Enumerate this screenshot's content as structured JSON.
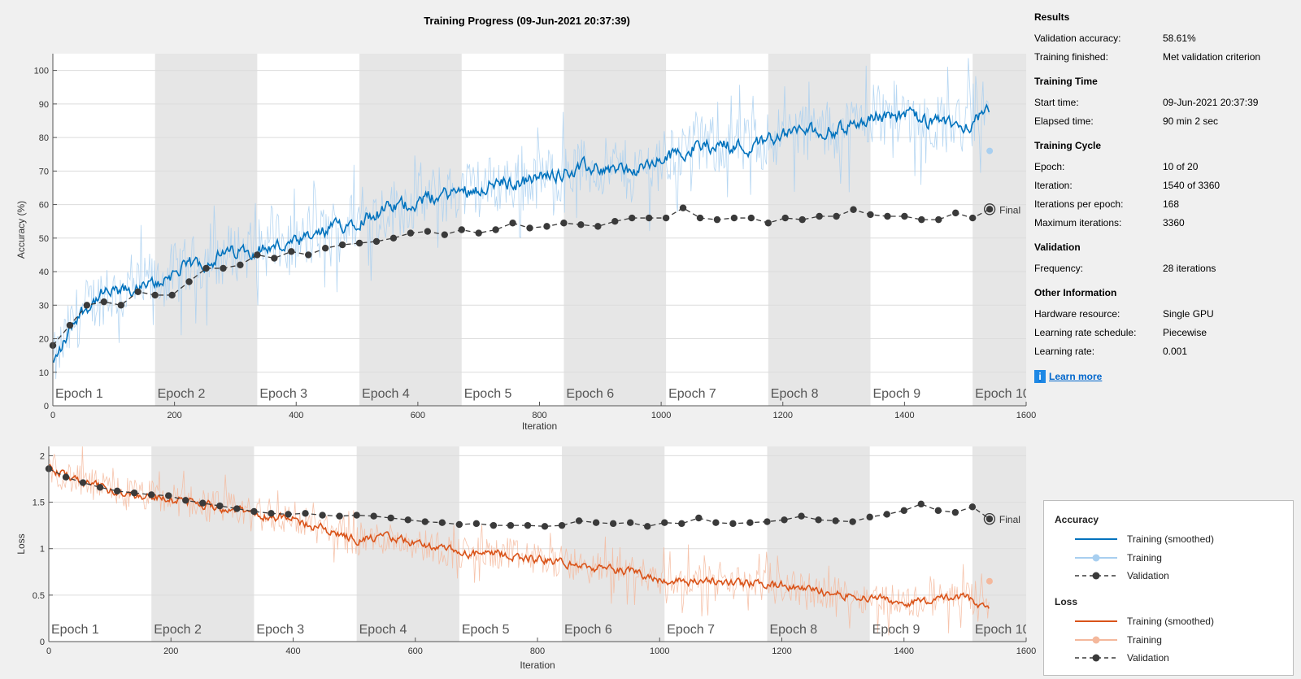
{
  "window": {
    "title": "Training Progress (09-Jun-2021 20:37:39)"
  },
  "colors": {
    "accuracy_smoothed": "#0072bd",
    "accuracy_raw": "#a8cff0",
    "loss_smoothed": "#d95319",
    "loss_raw": "#f4b89c",
    "validation": "#3a3a3a",
    "epoch_shade": "#e6e6e6",
    "plot_bg": "#ffffff",
    "grid": "#dcdcdc"
  },
  "chart_data": [
    {
      "type": "line",
      "title": "",
      "xlabel": "Iteration",
      "ylabel": "Accuracy (%)",
      "xlim": [
        0,
        1600
      ],
      "ylim": [
        0,
        105
      ],
      "xticks": [
        0,
        200,
        400,
        600,
        800,
        1000,
        1200,
        1400,
        1600
      ],
      "yticks": [
        0,
        10,
        20,
        30,
        40,
        50,
        60,
        70,
        80,
        90,
        100
      ],
      "grid": true,
      "epochs": [
        "Epoch 1",
        "Epoch 2",
        "Epoch 3",
        "Epoch 4",
        "Epoch 5",
        "Epoch 6",
        "Epoch 7",
        "Epoch 8",
        "Epoch 9",
        "Epoch 10"
      ],
      "iterations_per_epoch": 168,
      "final_label": "Final",
      "smoothed_anchors": {
        "x": [
          0,
          40,
          80,
          120,
          168,
          200,
          250,
          300,
          336,
          400,
          450,
          504,
          560,
          620,
          672,
          720,
          780,
          840,
          900,
          960,
          1008,
          1050,
          1100,
          1150,
          1176,
          1230,
          1290,
          1344,
          1400,
          1450,
          1500,
          1540
        ],
        "y": [
          12,
          27,
          33,
          34,
          36,
          40,
          43,
          46,
          47,
          48,
          52,
          56,
          59,
          62,
          64,
          66,
          67,
          70,
          71,
          70,
          74,
          77,
          78,
          77,
          80,
          82,
          82,
          86,
          87,
          84,
          84,
          87
        ]
      },
      "series": [
        {
          "name": "Validation",
          "x": [
            0,
            28,
            56,
            84,
            112,
            140,
            168,
            196,
            224,
            252,
            280,
            308,
            336,
            364,
            392,
            420,
            448,
            476,
            504,
            532,
            560,
            588,
            616,
            644,
            672,
            700,
            728,
            756,
            784,
            812,
            840,
            868,
            896,
            924,
            952,
            980,
            1008,
            1036,
            1064,
            1092,
            1120,
            1148,
            1176,
            1204,
            1232,
            1260,
            1288,
            1316,
            1344,
            1372,
            1400,
            1428,
            1456,
            1484,
            1512,
            1540
          ],
          "y": [
            18,
            24,
            30,
            31,
            30,
            34,
            33,
            33,
            37,
            41,
            41,
            42,
            45,
            44,
            46,
            45,
            47,
            48,
            48.5,
            49,
            50,
            51.5,
            52,
            51,
            52.5,
            51.5,
            52.5,
            54.5,
            53,
            53.5,
            54.5,
            54,
            53.5,
            55,
            56,
            56,
            56,
            59,
            56,
            55.5,
            56,
            56,
            54.5,
            56,
            55.5,
            56.5,
            56.5,
            58.5,
            57,
            56.5,
            56.5,
            55.5,
            55.5,
            57.5,
            56,
            58.61
          ]
        }
      ]
    },
    {
      "type": "line",
      "title": "",
      "xlabel": "Iteration",
      "ylabel": "Loss",
      "xlim": [
        0,
        1600
      ],
      "ylim": [
        0,
        2.1
      ],
      "xticks": [
        0,
        200,
        400,
        600,
        800,
        1000,
        1200,
        1400,
        1600
      ],
      "yticks": [
        0,
        0.5,
        1,
        1.5,
        2
      ],
      "ytick_labels": [
        "0",
        "0.5",
        "1",
        "1.5",
        "2"
      ],
      "grid": true,
      "epochs": [
        "Epoch 1",
        "Epoch 2",
        "Epoch 3",
        "Epoch 4",
        "Epoch 5",
        "Epoch 6",
        "Epoch 7",
        "Epoch 8",
        "Epoch 9",
        "Epoch 10"
      ],
      "iterations_per_epoch": 168,
      "final_label": "Final",
      "smoothed_anchors": {
        "x": [
          0,
          50,
          100,
          168,
          250,
          336,
          400,
          504,
          560,
          620,
          672,
          750,
          840,
          900,
          960,
          1008,
          1100,
          1176,
          1250,
          1344,
          1400,
          1450,
          1500,
          1540
        ],
        "y": [
          1.88,
          1.72,
          1.63,
          1.56,
          1.48,
          1.38,
          1.31,
          1.1,
          1.12,
          1.03,
          0.95,
          0.93,
          0.85,
          0.78,
          0.75,
          0.66,
          0.64,
          0.62,
          0.55,
          0.48,
          0.42,
          0.45,
          0.48,
          0.35
        ]
      },
      "series": [
        {
          "name": "Validation",
          "x": [
            0,
            28,
            56,
            84,
            112,
            140,
            168,
            196,
            224,
            252,
            280,
            308,
            336,
            364,
            392,
            420,
            448,
            476,
            504,
            532,
            560,
            588,
            616,
            644,
            672,
            700,
            728,
            756,
            784,
            812,
            840,
            868,
            896,
            924,
            952,
            980,
            1008,
            1036,
            1064,
            1092,
            1120,
            1148,
            1176,
            1204,
            1232,
            1260,
            1288,
            1316,
            1344,
            1372,
            1400,
            1428,
            1456,
            1484,
            1512,
            1540
          ],
          "y": [
            1.86,
            1.77,
            1.71,
            1.66,
            1.62,
            1.6,
            1.58,
            1.57,
            1.52,
            1.49,
            1.46,
            1.43,
            1.4,
            1.38,
            1.37,
            1.38,
            1.36,
            1.35,
            1.36,
            1.35,
            1.33,
            1.31,
            1.29,
            1.28,
            1.26,
            1.27,
            1.25,
            1.25,
            1.25,
            1.24,
            1.25,
            1.3,
            1.28,
            1.27,
            1.28,
            1.24,
            1.28,
            1.27,
            1.33,
            1.28,
            1.27,
            1.28,
            1.29,
            1.31,
            1.35,
            1.31,
            1.3,
            1.29,
            1.34,
            1.37,
            1.41,
            1.48,
            1.41,
            1.39,
            1.45,
            1.32
          ]
        }
      ]
    }
  ],
  "results": {
    "heading": "Results",
    "rows": [
      {
        "key": "Validation accuracy:",
        "value": "58.61%"
      },
      {
        "key": "Training finished:",
        "value": "Met validation criterion"
      }
    ]
  },
  "training_time": {
    "heading": "Training Time",
    "rows": [
      {
        "key": "Start time:",
        "value": "09-Jun-2021 20:37:39"
      },
      {
        "key": "Elapsed time:",
        "value": "90 min 2 sec"
      }
    ]
  },
  "training_cycle": {
    "heading": "Training Cycle",
    "rows": [
      {
        "key": "Epoch:",
        "value": "10 of 20"
      },
      {
        "key": "Iteration:",
        "value": "1540 of 3360"
      },
      {
        "key": "Iterations per epoch:",
        "value": "168"
      },
      {
        "key": "Maximum iterations:",
        "value": "3360"
      }
    ]
  },
  "validation": {
    "heading": "Validation",
    "rows": [
      {
        "key": "Frequency:",
        "value": "28 iterations"
      }
    ]
  },
  "other_info": {
    "heading": "Other Information",
    "rows": [
      {
        "key": "Hardware resource:",
        "value": "Single GPU"
      },
      {
        "key": "Learning rate schedule:",
        "value": "Piecewise"
      },
      {
        "key": "Learning rate:",
        "value": "0.001"
      }
    ]
  },
  "learn_more": {
    "icon": "info-icon",
    "glyph": "i",
    "label": "Learn more"
  },
  "legend": {
    "accuracy": {
      "heading": "Accuracy",
      "items": [
        "Training (smoothed)",
        "Training",
        "Validation"
      ]
    },
    "loss": {
      "heading": "Loss",
      "items": [
        "Training (smoothed)",
        "Training",
        "Validation"
      ]
    }
  }
}
